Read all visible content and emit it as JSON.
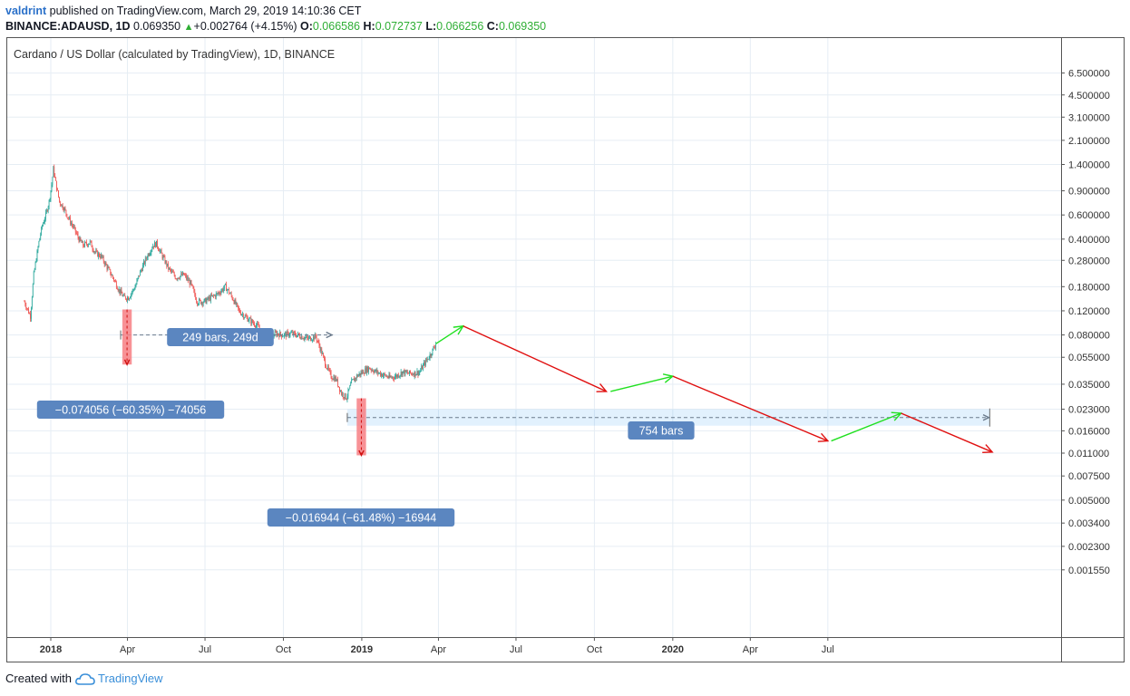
{
  "header": {
    "author": "valdrint",
    "published_text": "published on TradingView.com, March 29, 2019 14:10:36 CET",
    "symbol": "BINANCE:ADAUSD, 1D",
    "last": "0.069350",
    "change": "+0.002764 (+4.15%)",
    "open_label": "O:",
    "open": "0.066586",
    "high_label": "H:",
    "high": "0.072737",
    "low_label": "L:",
    "low": "0.066256",
    "close_label": "C:",
    "close": "0.069350"
  },
  "footer": {
    "created_with": "Created with",
    "brand": "TradingView"
  },
  "colors": {
    "up": "#26a69a",
    "down": "#ef5350",
    "green_arrow": "#20e020",
    "red_arrow": "#e01010",
    "label_bg": "#5b86c0",
    "pink_box": "#f77f84"
  },
  "chart_data": {
    "type": "candlestick",
    "title": "Cardano / US Dollar (calculated by TradingView), 1D, BINANCE",
    "y_scale": "log",
    "yticks": [
      "6.500000",
      "4.500000",
      "3.100000",
      "2.100000",
      "1.400000",
      "0.900000",
      "0.600000",
      "0.400000",
      "0.280000",
      "0.180000",
      "0.120000",
      "0.080000",
      "0.055000",
      "0.035000",
      "0.023000",
      "0.016000",
      "0.011000",
      "0.007500",
      "0.005000",
      "0.003400",
      "0.002300",
      "0.001550"
    ],
    "xticks": [
      {
        "label": "2018",
        "date": "2018-01-01",
        "bold": true
      },
      {
        "label": "Apr",
        "date": "2018-04-01"
      },
      {
        "label": "Jul",
        "date": "2018-07-01"
      },
      {
        "label": "Oct",
        "date": "2018-10-01"
      },
      {
        "label": "2019",
        "date": "2019-01-01",
        "bold": true
      },
      {
        "label": "Apr",
        "date": "2019-04-01"
      },
      {
        "label": "Jul",
        "date": "2019-07-01"
      },
      {
        "label": "Oct",
        "date": "2019-10-01"
      },
      {
        "label": "2020",
        "date": "2020-01-01",
        "bold": true
      },
      {
        "label": "Apr",
        "date": "2020-04-01"
      },
      {
        "label": "Jul",
        "date": "2020-07-01"
      }
    ],
    "price_path": [
      [
        "2017-12-01",
        0.14
      ],
      [
        "2017-12-08",
        0.11
      ],
      [
        "2017-12-12",
        0.22
      ],
      [
        "2017-12-18",
        0.38
      ],
      [
        "2017-12-22",
        0.5
      ],
      [
        "2017-12-26",
        0.6
      ],
      [
        "2017-12-30",
        0.75
      ],
      [
        "2018-01-02",
        1.0
      ],
      [
        "2018-01-04",
        1.3
      ],
      [
        "2018-01-08",
        0.95
      ],
      [
        "2018-01-11",
        0.75
      ],
      [
        "2018-01-16",
        0.68
      ],
      [
        "2018-01-20",
        0.6
      ],
      [
        "2018-01-28",
        0.48
      ],
      [
        "2018-02-03",
        0.4
      ],
      [
        "2018-02-08",
        0.36
      ],
      [
        "2018-02-16",
        0.38
      ],
      [
        "2018-02-22",
        0.32
      ],
      [
        "2018-03-01",
        0.3
      ],
      [
        "2018-03-08",
        0.25
      ],
      [
        "2018-03-15",
        0.21
      ],
      [
        "2018-03-22",
        0.17
      ],
      [
        "2018-03-28",
        0.15
      ],
      [
        "2018-04-02",
        0.15
      ],
      [
        "2018-04-10",
        0.18
      ],
      [
        "2018-04-16",
        0.23
      ],
      [
        "2018-04-24",
        0.3
      ],
      [
        "2018-05-01",
        0.36
      ],
      [
        "2018-05-05",
        0.37
      ],
      [
        "2018-05-12",
        0.3
      ],
      [
        "2018-05-20",
        0.24
      ],
      [
        "2018-05-28",
        0.21
      ],
      [
        "2018-06-06",
        0.22
      ],
      [
        "2018-06-14",
        0.19
      ],
      [
        "2018-06-22",
        0.14
      ],
      [
        "2018-06-30",
        0.14
      ],
      [
        "2018-07-08",
        0.15
      ],
      [
        "2018-07-16",
        0.16
      ],
      [
        "2018-07-25",
        0.18
      ],
      [
        "2018-08-02",
        0.15
      ],
      [
        "2018-08-10",
        0.12
      ],
      [
        "2018-08-16",
        0.11
      ],
      [
        "2018-08-25",
        0.1
      ],
      [
        "2018-09-03",
        0.09
      ],
      [
        "2018-09-08",
        0.072
      ],
      [
        "2018-09-14",
        0.075
      ],
      [
        "2018-09-22",
        0.082
      ],
      [
        "2018-10-01",
        0.08
      ],
      [
        "2018-10-10",
        0.082
      ],
      [
        "2018-10-20",
        0.079
      ],
      [
        "2018-10-30",
        0.075
      ],
      [
        "2018-11-08",
        0.078
      ],
      [
        "2018-11-14",
        0.062
      ],
      [
        "2018-11-20",
        0.048
      ],
      [
        "2018-11-26",
        0.04
      ],
      [
        "2018-12-02",
        0.038
      ],
      [
        "2018-12-08",
        0.03
      ],
      [
        "2018-12-14",
        0.028
      ],
      [
        "2018-12-20",
        0.036
      ],
      [
        "2018-12-26",
        0.04
      ],
      [
        "2019-01-02",
        0.043
      ],
      [
        "2019-01-10",
        0.046
      ],
      [
        "2019-01-18",
        0.043
      ],
      [
        "2019-01-26",
        0.041
      ],
      [
        "2019-02-03",
        0.039
      ],
      [
        "2019-02-10",
        0.04
      ],
      [
        "2019-02-18",
        0.043
      ],
      [
        "2019-02-24",
        0.042
      ],
      [
        "2019-03-03",
        0.042
      ],
      [
        "2019-03-10",
        0.043
      ],
      [
        "2019-03-16",
        0.05
      ],
      [
        "2019-03-22",
        0.057
      ],
      [
        "2019-03-29",
        0.069
      ]
    ],
    "measurements": [
      {
        "label": "−0.074056 (−60.35%) −74056",
        "box_from_date": "2018-03-26",
        "box_to_date": "2018-04-06",
        "from_price": 0.1227,
        "to_price": 0.0487
      },
      {
        "label": "−0.016944 (−61.48%) −16944",
        "box_from_date": "2018-12-26",
        "box_to_date": "2019-01-06",
        "from_price": 0.0276,
        "to_price": 0.0106
      }
    ],
    "ranges": [
      {
        "label": "249 bars, 249d",
        "from_date": "2018-03-24",
        "to_date": "2018-11-28",
        "price": 0.08
      },
      {
        "label": "754 bars",
        "from_date": "2018-12-15",
        "to_date": "2021-01-07",
        "price": 0.02
      }
    ],
    "projection_arrows": [
      {
        "color": "green",
        "from": [
          "2019-03-29",
          0.069
        ],
        "to": [
          "2019-04-30",
          0.093
        ]
      },
      {
        "color": "red",
        "from": [
          "2019-04-30",
          0.093
        ],
        "to": [
          "2019-10-15",
          0.031
        ]
      },
      {
        "color": "green",
        "from": [
          "2019-10-20",
          0.031
        ],
        "to": [
          "2020-01-01",
          0.04
        ]
      },
      {
        "color": "red",
        "from": [
          "2020-01-01",
          0.04
        ],
        "to": [
          "2020-07-01",
          0.0135
        ]
      },
      {
        "color": "green",
        "from": [
          "2020-07-05",
          0.0135
        ],
        "to": [
          "2020-09-25",
          0.0215
        ]
      },
      {
        "color": "red",
        "from": [
          "2020-09-25",
          0.0215
        ],
        "to": [
          "2021-01-10",
          0.0112
        ]
      }
    ]
  }
}
